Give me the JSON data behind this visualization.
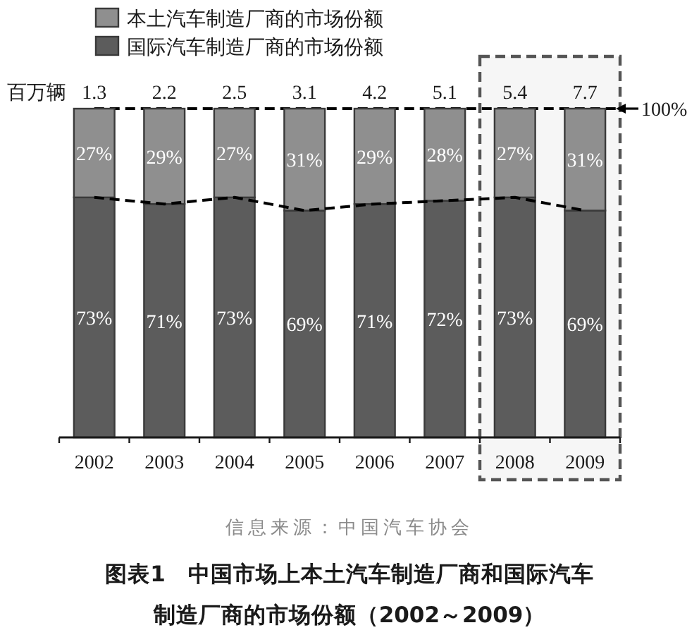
{
  "chart_data": {
    "type": "bar",
    "stacked": true,
    "title": "图表1　中国市场上本土汽车制造厂商和国际汽车制造厂商的市场份额（2002～2009）",
    "annotations": [
      "百万辆",
      {
        "text": "1.3",
        "x": "2002",
        "y": 100
      },
      {
        "text": "2.2",
        "x": "2003",
        "y": 100
      },
      {
        "text": "2.5",
        "x": "2004",
        "y": 100
      },
      {
        "text": "3.1",
        "x": "2005",
        "y": 100
      },
      {
        "text": "4.2",
        "x": "2006",
        "y": 100
      },
      {
        "text": "5.1",
        "x": "2007",
        "y": 100
      },
      {
        "text": "5.4",
        "x": "2008",
        "y": 100
      },
      {
        "text": "7.7",
        "x": "2009",
        "y": 100
      },
      "信息来源：中国汽车协会"
    ],
    "categories": [
      "2002",
      "2003",
      "2004",
      "2005",
      "2006",
      "2007",
      "2008",
      "2009"
    ],
    "ylim": [
      0,
      100
    ],
    "series": [
      {
        "name": "国际汽车制造厂商的市场份额",
        "color": "#5c5c5c",
        "values": [
          73,
          71,
          73,
          69,
          71,
          72,
          73,
          69
        ],
        "value_labels": [
          "73%",
          "71%",
          "73%",
          "69%",
          "71%",
          "72%",
          "73%",
          "69%"
        ]
      },
      {
        "name": "本土汽车制造厂商的市场份额",
        "color": "#8f8f8f",
        "values": [
          27,
          29,
          27,
          31,
          29,
          28,
          27,
          31
        ],
        "value_labels": [
          "27%",
          "29%",
          "27%",
          "31%",
          "29%",
          "28%",
          "27%",
          "31%"
        ]
      },
      {
        "type": "line",
        "color": "#000000",
        "values": [
          73,
          71,
          73,
          69,
          71,
          72,
          73,
          69
        ],
        "line_style": "dashed"
      }
    ],
    "ref_lines": [
      {
        "axis": "y",
        "value": 100,
        "label": "100%",
        "line_style": "dashed",
        "color": "#000000"
      }
    ],
    "bands": [
      {
        "axis": "x",
        "from": "2008",
        "to": "2009",
        "color": "#555555"
      }
    ],
    "legend": "top"
  }
}
